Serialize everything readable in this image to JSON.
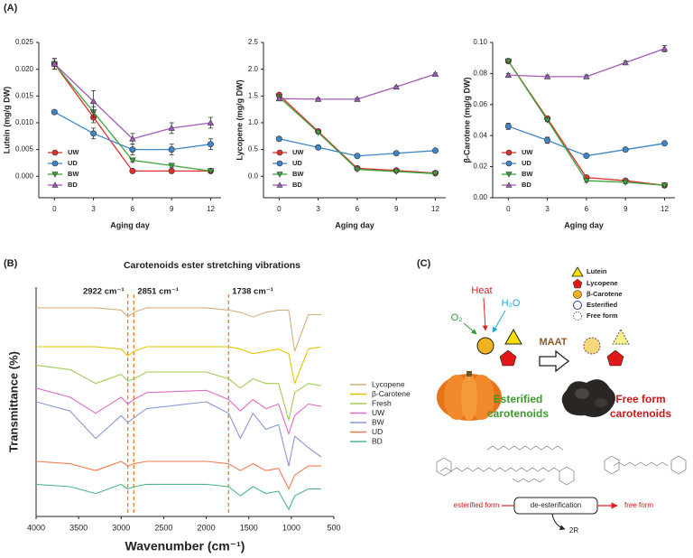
{
  "panel_labels": [
    "(A)",
    "(B)",
    "(C)"
  ],
  "chart_data": [
    {
      "type": "line",
      "ylabel": "Lutein (mg/g DW)",
      "xlabel": "Aging day",
      "x": [
        0,
        3,
        6,
        9,
        12
      ],
      "xlim": [
        -1.2,
        12.8
      ],
      "xticks": [
        0,
        3,
        6,
        9,
        12
      ],
      "ylim": [
        -0.004,
        0.025
      ],
      "yticks": [
        {
          "value": 0,
          "label": "0.000"
        },
        0.005,
        {
          "value": 0.01,
          "label": "0.010"
        },
        0.015,
        {
          "value": 0.02,
          "label": "0.020"
        },
        0.025
      ],
      "legend": "lower left",
      "series": [
        {
          "name": "UW",
          "color": "#e0302c",
          "marker": "circle",
          "values": [
            0.021,
            0.011,
            0.001,
            0.001,
            0.001
          ],
          "errors": [
            0.001,
            0.001,
            0.0003,
            0.0003,
            0.0003
          ]
        },
        {
          "name": "UD",
          "color": "#3f86c8",
          "marker": "circle",
          "values": [
            0.012,
            0.008,
            0.005,
            0.005,
            0.006
          ],
          "errors": [
            0.0003,
            0.001,
            0.001,
            0.001,
            0.001
          ]
        },
        {
          "name": "BW",
          "color": "#3aa53a",
          "marker": "triangle-down",
          "values": [
            0.021,
            0.012,
            0.003,
            0.002,
            0.001
          ],
          "errors": [
            0.001,
            0.001,
            0.0003,
            0.0003,
            0.0003
          ]
        },
        {
          "name": "BD",
          "color": "#a05cb8",
          "marker": "triangle-up",
          "values": [
            0.021,
            0.014,
            0.007,
            0.009,
            0.01
          ],
          "errors": [
            0.001,
            0.002,
            0.001,
            0.001,
            0.001
          ]
        }
      ]
    },
    {
      "type": "line",
      "ylabel": "Lycopene (mg/g DW)",
      "xlabel": "Aging day",
      "x": [
        0,
        3,
        6,
        9,
        12
      ],
      "xlim": [
        -1.2,
        12.8
      ],
      "xticks": [
        0,
        3,
        6,
        9,
        12
      ],
      "ylim": [
        -0.4,
        2.5
      ],
      "yticks": [
        {
          "value": 0,
          "label": "0.0"
        },
        0.5,
        {
          "value": 1,
          "label": "1.0"
        },
        1.5,
        {
          "value": 2,
          "label": "2.0"
        },
        2.5
      ],
      "legend": "lower left",
      "series": [
        {
          "name": "UW",
          "color": "#e0302c",
          "marker": "circle",
          "values": [
            1.52,
            0.84,
            0.15,
            0.11,
            0.06
          ],
          "errors": [
            0.03,
            0.02,
            0.02,
            0.01,
            0.01
          ]
        },
        {
          "name": "UD",
          "color": "#3f86c8",
          "marker": "circle",
          "values": [
            0.7,
            0.54,
            0.38,
            0.43,
            0.48
          ],
          "errors": [
            0.02,
            0.02,
            0.01,
            0.01,
            0.01
          ]
        },
        {
          "name": "BW",
          "color": "#3aa53a",
          "marker": "triangle-down",
          "values": [
            1.48,
            0.82,
            0.13,
            0.09,
            0.05
          ],
          "errors": [
            0.03,
            0.02,
            0.02,
            0.01,
            0.01
          ]
        },
        {
          "name": "BD",
          "color": "#a05cb8",
          "marker": "triangle-up",
          "values": [
            1.45,
            1.44,
            1.44,
            1.67,
            1.91
          ],
          "errors": [
            0.02,
            0.02,
            0.02,
            0.02,
            0.02
          ]
        }
      ]
    },
    {
      "type": "line",
      "ylabel": "β-Carotene (mg/g DW)",
      "xlabel": "Aging day",
      "x": [
        0,
        3,
        6,
        9,
        12
      ],
      "xlim": [
        -1.2,
        12.8
      ],
      "xticks": [
        0,
        3,
        6,
        9,
        12
      ],
      "ylim": [
        0,
        0.1
      ],
      "yticks": [
        {
          "value": 0,
          "label": "0.00"
        },
        0.02,
        0.04,
        0.06,
        0.08,
        {
          "value": 0.1,
          "label": "0.10"
        }
      ],
      "legend": "lower left",
      "series": [
        {
          "name": "UW",
          "color": "#e0302c",
          "marker": "circle",
          "values": [
            0.088,
            0.051,
            0.013,
            0.011,
            0.008
          ],
          "errors": [
            0.001,
            0.001,
            0.001,
            0.001,
            0.001
          ]
        },
        {
          "name": "UD",
          "color": "#3f86c8",
          "marker": "circle",
          "values": [
            0.046,
            0.037,
            0.027,
            0.031,
            0.035
          ],
          "errors": [
            0.002,
            0.002,
            0.001,
            0.001,
            0.001
          ]
        },
        {
          "name": "BW",
          "color": "#3aa53a",
          "marker": "triangle-down",
          "values": [
            0.088,
            0.05,
            0.011,
            0.01,
            0.008
          ],
          "errors": [
            0.001,
            0.001,
            0.001,
            0.001,
            0.001
          ]
        },
        {
          "name": "BD",
          "color": "#a05cb8",
          "marker": "triangle-up",
          "values": [
            0.079,
            0.078,
            0.078,
            0.087,
            0.096
          ],
          "errors": [
            0.001,
            0.001,
            0.001,
            0.001,
            0.002
          ]
        }
      ]
    },
    {
      "type": "spectrum",
      "title": "Carotenoids ester stretching vibrations",
      "ylabel": "Transmittance (%)",
      "xlabel": "Wavenumber (cm⁻¹)",
      "x": [
        4000,
        3600,
        3300,
        3000,
        2922,
        2851,
        2700,
        2000,
        1738,
        1600,
        1450,
        1300,
        1150,
        1030,
        960,
        800,
        650
      ],
      "xlim": [
        4000,
        500
      ],
      "xticks": [
        4000,
        3500,
        3000,
        2500,
        2000,
        1500,
        1000,
        500
      ],
      "ylim": [
        0,
        100
      ],
      "legend": "right",
      "vlines": [
        {
          "value": 2922,
          "label": "2922 cm⁻¹"
        },
        {
          "value": 2851,
          "label": "2851 cm⁻¹"
        },
        {
          "value": 1738,
          "label": "1738 cm⁻¹"
        }
      ],
      "series": [
        {
          "name": "Lycopene",
          "color": "#d2b07e",
          "values": [
            91,
            91,
            91,
            90,
            87,
            89,
            91,
            91,
            90,
            89,
            87,
            89,
            90,
            90,
            72,
            88,
            88
          ]
        },
        {
          "name": "β-Carotene",
          "color": "#e3c400",
          "values": [
            74,
            74,
            74,
            73,
            70,
            72,
            74,
            74,
            74,
            73,
            71,
            72,
            73,
            71,
            58,
            73,
            74
          ]
        },
        {
          "name": "Fresh",
          "color": "#a2cc55",
          "values": [
            66,
            64,
            58,
            62,
            59,
            60,
            63,
            63,
            60,
            56,
            60,
            58,
            58,
            42,
            54,
            58,
            57
          ]
        },
        {
          "name": "UW",
          "color": "#de6cc6",
          "values": [
            56,
            52,
            45,
            52,
            49,
            51,
            54,
            55,
            51,
            46,
            51,
            47,
            49,
            36,
            44,
            49,
            48
          ]
        },
        {
          "name": "BW",
          "color": "#8a98d4",
          "values": [
            50,
            46,
            34,
            44,
            41,
            43,
            47,
            50,
            45,
            34,
            45,
            38,
            40,
            22,
            35,
            30,
            26
          ]
        },
        {
          "name": "UD",
          "color": "#ee7c4e",
          "values": [
            24,
            23,
            20,
            24,
            22,
            23,
            24,
            24,
            23,
            20,
            23,
            20,
            21,
            12,
            18,
            22,
            22
          ]
        },
        {
          "name": "BD",
          "color": "#4fb68c",
          "values": [
            14,
            13,
            10,
            14,
            12,
            13,
            14,
            14,
            13,
            9,
            13,
            10,
            11,
            3,
            9,
            12,
            12
          ]
        }
      ]
    }
  ],
  "diagram": {
    "legend": [
      "Lutein",
      "Lycopene",
      "β-Carotene",
      "Esterified",
      "Free form"
    ],
    "heat": "Heat",
    "water": "H₂O",
    "oxygen": "O₂",
    "process": "MAAT",
    "left_label": [
      "Esterified",
      "carotenoids"
    ],
    "right_label": [
      "Free form",
      "carotenoids"
    ],
    "reaction": {
      "from": "esterified form",
      "step": "de-esterification",
      "to": "free form",
      "byproduct": "2R"
    }
  }
}
